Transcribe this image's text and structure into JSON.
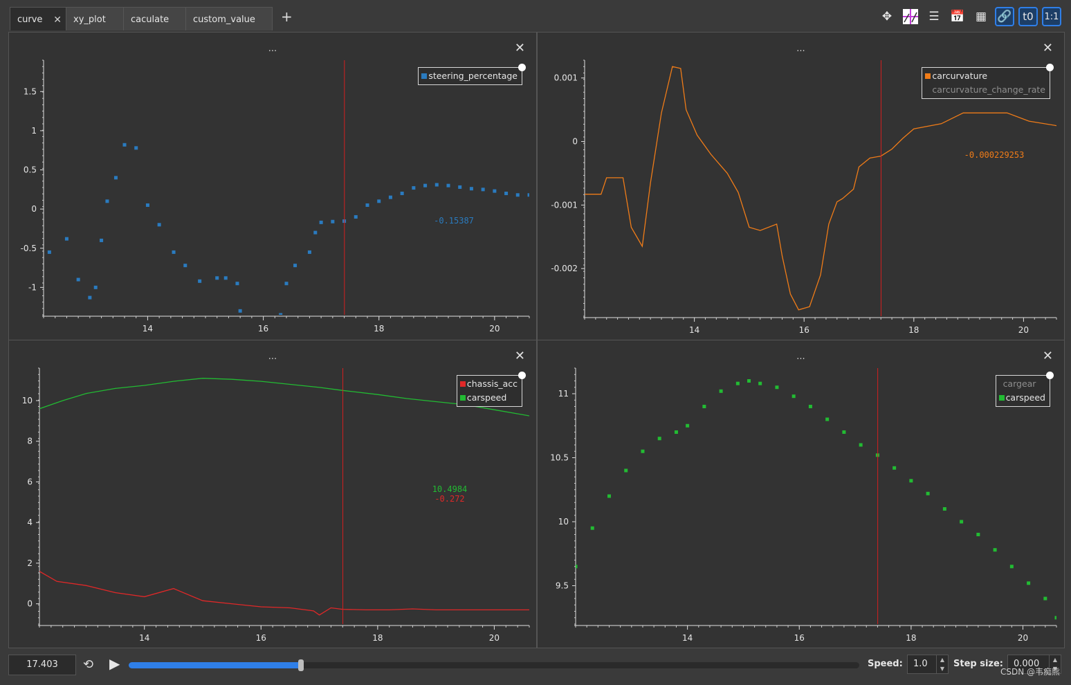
{
  "tabs": [
    {
      "label": "curve",
      "active": true
    },
    {
      "label": "xy_plot"
    },
    {
      "label": "caculate"
    },
    {
      "label": "custom_value"
    }
  ],
  "add_tab_label": "+",
  "toolbar_icons": [
    "move-icon",
    "layout-icon",
    "list-icon",
    "calendar-time-icon",
    "grid-icon",
    "link-icon",
    "time-offset-icon",
    "ratio-icon"
  ],
  "toolbar_text": {
    "t0": "t0",
    "ratio": "1:1"
  },
  "panel_title": "...",
  "panels": {
    "top_left": {
      "legend": [
        {
          "name": "steering_percentage",
          "color": "#2a7bbf",
          "visible": true
        }
      ],
      "readouts": [
        {
          "text": "-0.15387",
          "color": "#2a7bbf"
        }
      ],
      "y_ticks": [
        {
          "v": -1,
          "label": "-1"
        },
        {
          "v": -0.5,
          "label": "-0.5"
        },
        {
          "v": 0,
          "label": "0"
        },
        {
          "v": 0.5,
          "label": "0.5"
        },
        {
          "v": 1,
          "label": "1"
        },
        {
          "v": 1.5,
          "label": "1.5"
        }
      ],
      "x_ticks": [
        {
          "v": 14,
          "label": "14"
        },
        {
          "v": 16,
          "label": "16"
        },
        {
          "v": 18,
          "label": "18"
        },
        {
          "v": 20,
          "label": "20"
        }
      ]
    },
    "top_right": {
      "legend": [
        {
          "name": "carcurvature",
          "color": "#f07c18",
          "visible": true
        },
        {
          "name": "carcurvature_change_rate",
          "color": "#888888",
          "visible": false
        }
      ],
      "readouts": [
        {
          "text": "-0.000229253",
          "color": "#f07c18"
        }
      ],
      "y_ticks": [
        {
          "v": -0.002,
          "label": "-0.002"
        },
        {
          "v": -0.001,
          "label": "-0.001"
        },
        {
          "v": 0,
          "label": "0"
        },
        {
          "v": 0.001,
          "label": "0.001"
        }
      ],
      "x_ticks": [
        {
          "v": 14,
          "label": "14"
        },
        {
          "v": 16,
          "label": "16"
        },
        {
          "v": 18,
          "label": "18"
        },
        {
          "v": 20,
          "label": "20"
        }
      ]
    },
    "bottom_left": {
      "legend": [
        {
          "name": "chassis_acc",
          "color": "#e02828",
          "visible": true
        },
        {
          "name": "carspeed",
          "color": "#22bb33",
          "visible": true
        }
      ],
      "readouts": [
        {
          "text": "10.4984",
          "color": "#22bb33"
        },
        {
          "text": "-0.272",
          "color": "#e02828"
        }
      ],
      "y_ticks": [
        {
          "v": 0,
          "label": "0"
        },
        {
          "v": 2,
          "label": "2"
        },
        {
          "v": 4,
          "label": "4"
        },
        {
          "v": 6,
          "label": "6"
        },
        {
          "v": 8,
          "label": "8"
        },
        {
          "v": 10,
          "label": "10"
        }
      ],
      "x_ticks": [
        {
          "v": 14,
          "label": "14"
        },
        {
          "v": 16,
          "label": "16"
        },
        {
          "v": 18,
          "label": "18"
        },
        {
          "v": 20,
          "label": "20"
        }
      ]
    },
    "bottom_right": {
      "legend": [
        {
          "name": "cargear",
          "color": "#888888",
          "visible": false
        },
        {
          "name": "carspeed",
          "color": "#22bb33",
          "visible": true
        }
      ],
      "readouts": [],
      "y_ticks": [
        {
          "v": 9.5,
          "label": "9.5"
        },
        {
          "v": 10,
          "label": "10"
        },
        {
          "v": 10.5,
          "label": "10.5"
        },
        {
          "v": 11,
          "label": "11"
        }
      ],
      "x_ticks": [
        {
          "v": 14,
          "label": "14"
        },
        {
          "v": 16,
          "label": "16"
        },
        {
          "v": 18,
          "label": "18"
        },
        {
          "v": 20,
          "label": "20"
        }
      ]
    }
  },
  "chart_data": [
    {
      "type": "scatter",
      "panel": "top_left",
      "series": [
        {
          "name": "steering_percentage",
          "color": "#2a7bbf",
          "x": [
            12.3,
            12.6,
            12.8,
            13.0,
            13.1,
            13.2,
            13.3,
            13.45,
            13.6,
            13.8,
            14.0,
            14.2,
            14.45,
            14.65,
            14.9,
            15.2,
            15.35,
            15.55,
            15.6,
            16.3,
            16.4,
            16.55,
            16.8,
            16.9,
            17.0,
            17.2,
            17.4,
            17.6,
            17.8,
            18.0,
            18.2,
            18.4,
            18.6,
            18.8,
            19.0,
            19.2,
            19.4,
            19.6,
            19.8,
            20.0,
            20.2,
            20.4,
            20.6
          ],
          "y": [
            -0.55,
            -0.38,
            -0.9,
            -1.13,
            -1.0,
            -0.4,
            0.1,
            0.4,
            0.82,
            0.78,
            0.05,
            -0.2,
            -0.55,
            -0.72,
            -0.92,
            -0.88,
            -0.88,
            -0.95,
            -1.3,
            -1.35,
            -0.95,
            -0.72,
            -0.55,
            -0.3,
            -0.17,
            -0.16,
            -0.154,
            -0.1,
            0.05,
            0.1,
            0.15,
            0.2,
            0.27,
            0.3,
            0.31,
            0.3,
            0.28,
            0.26,
            0.25,
            0.23,
            0.2,
            0.18,
            0.18
          ]
        }
      ],
      "xlim": [
        12.2,
        20.6
      ],
      "ylim": [
        -1.35,
        1.9
      ],
      "cursor_x": 17.403
    },
    {
      "type": "line",
      "panel": "top_right",
      "series": [
        {
          "name": "carcurvature",
          "color": "#f07c18",
          "x": [
            12.0,
            12.3,
            12.4,
            12.7,
            12.85,
            13.05,
            13.2,
            13.4,
            13.6,
            13.75,
            13.85,
            14.05,
            14.3,
            14.6,
            14.8,
            15.0,
            15.2,
            15.5,
            15.6,
            15.75,
            15.9,
            16.1,
            16.3,
            16.45,
            16.6,
            16.7,
            16.9,
            17.0,
            17.2,
            17.4,
            17.6,
            17.8,
            18.0,
            18.5,
            18.9,
            19.3,
            19.7,
            20.1,
            20.6
          ],
          "y": [
            -0.00083,
            -0.00083,
            -0.00057,
            -0.00057,
            -0.00135,
            -0.00165,
            -0.00065,
            0.00045,
            0.00118,
            0.00115,
            0.0005,
            0.0001,
            -0.0002,
            -0.0005,
            -0.0008,
            -0.00135,
            -0.0014,
            -0.0013,
            -0.0018,
            -0.0024,
            -0.00265,
            -0.0026,
            -0.0021,
            -0.0013,
            -0.00095,
            -0.0009,
            -0.00075,
            -0.0004,
            -0.00026,
            -0.00023,
            -0.00012,
            5e-05,
            0.0002,
            0.00028,
            0.00045,
            0.00045,
            0.00045,
            0.00032,
            0.00025
          ]
        }
      ],
      "xlim": [
        12.0,
        20.6
      ],
      "ylim": [
        -0.00275,
        0.00128
      ],
      "cursor_x": 17.403
    },
    {
      "type": "line",
      "panel": "bottom_left",
      "series": [
        {
          "name": "carspeed",
          "color": "#22bb33",
          "x": [
            12.2,
            12.6,
            13.0,
            13.5,
            14.0,
            14.5,
            15.0,
            15.5,
            16.0,
            16.5,
            17.0,
            17.4,
            18.0,
            18.5,
            19.0,
            19.5,
            20.0,
            20.6
          ],
          "y": [
            9.6,
            10.0,
            10.35,
            10.6,
            10.75,
            10.95,
            11.1,
            11.05,
            10.95,
            10.8,
            10.65,
            10.5,
            10.3,
            10.1,
            9.95,
            9.8,
            9.55,
            9.25
          ]
        },
        {
          "name": "chassis_acc",
          "color": "#e02828",
          "x": [
            12.2,
            12.5,
            13.0,
            13.5,
            14.0,
            14.5,
            15.0,
            15.5,
            16.0,
            16.5,
            16.9,
            17.0,
            17.2,
            17.4,
            17.8,
            18.2,
            18.6,
            19.0,
            19.5,
            20.0,
            20.6
          ],
          "y": [
            1.6,
            1.1,
            0.9,
            0.55,
            0.35,
            0.75,
            0.15,
            0.0,
            -0.15,
            -0.2,
            -0.35,
            -0.55,
            -0.2,
            -0.272,
            -0.3,
            -0.3,
            -0.25,
            -0.3,
            -0.3,
            -0.3,
            -0.3
          ]
        }
      ],
      "xlim": [
        12.2,
        20.6
      ],
      "ylim": [
        -1.0,
        11.6
      ],
      "cursor_x": 17.403
    },
    {
      "type": "scatter",
      "panel": "bottom_right",
      "series": [
        {
          "name": "carspeed",
          "color": "#22bb33",
          "x": [
            12.0,
            12.3,
            12.6,
            12.9,
            13.2,
            13.5,
            13.8,
            14.0,
            14.3,
            14.6,
            14.9,
            15.1,
            15.3,
            15.6,
            15.9,
            16.2,
            16.5,
            16.8,
            17.1,
            17.4,
            17.7,
            18.0,
            18.3,
            18.6,
            18.9,
            19.2,
            19.5,
            19.8,
            20.1,
            20.4,
            20.6
          ],
          "y": [
            9.65,
            9.95,
            10.2,
            10.4,
            10.55,
            10.65,
            10.7,
            10.75,
            10.9,
            11.02,
            11.08,
            11.1,
            11.08,
            11.05,
            10.98,
            10.9,
            10.8,
            10.7,
            10.6,
            10.52,
            10.42,
            10.32,
            10.22,
            10.1,
            10.0,
            9.9,
            9.78,
            9.65,
            9.52,
            9.4,
            9.25
          ]
        }
      ],
      "xlim": [
        12.0,
        20.6
      ],
      "ylim": [
        9.2,
        11.2
      ],
      "cursor_x": 17.403
    }
  ],
  "bottom": {
    "time_value": "17.403",
    "progress": 0.236,
    "speed_label": "Speed:",
    "speed_value": "1.0",
    "step_label": "Step size:",
    "step_value": "0.000",
    "watermark": "CSDN @韦痴熊"
  }
}
